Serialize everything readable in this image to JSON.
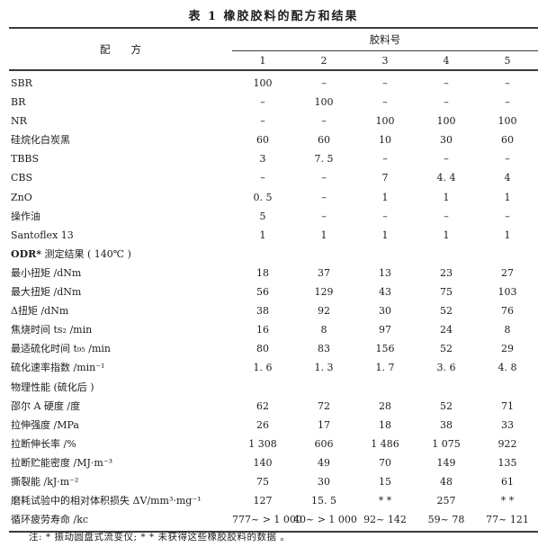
{
  "title": "表 1  橡胶胶料的配方和结果",
  "table": {
    "left_header": "配　　方",
    "group_header": "胶料号",
    "column_headers": [
      "1",
      "2",
      "3",
      "4",
      "5"
    ],
    "rows": [
      {
        "label": "SBR",
        "values": [
          "100",
          "–",
          "–",
          "–",
          "–"
        ]
      },
      {
        "label": "BR",
        "values": [
          "–",
          "100",
          "–",
          "–",
          "–"
        ]
      },
      {
        "label": "NR",
        "values": [
          "–",
          "–",
          "100",
          "100",
          "100"
        ]
      },
      {
        "label": "硅烷化白炭黑",
        "values": [
          "60",
          "60",
          "10",
          "30",
          "60"
        ]
      },
      {
        "label": "TBBS",
        "values": [
          "3",
          "7. 5",
          "–",
          "–",
          "–"
        ]
      },
      {
        "label": "CBS",
        "values": [
          "–",
          "–",
          "7",
          "4. 4",
          "4"
        ]
      },
      {
        "label": "ZnO",
        "values": [
          "0. 5",
          "–",
          "1",
          "1",
          "1"
        ]
      },
      {
        "label": "操作油",
        "values": [
          "5",
          "–",
          "–",
          "–",
          "–"
        ]
      },
      {
        "label": "Santoflex 13",
        "values": [
          "1",
          "1",
          "1",
          "1",
          "1"
        ]
      },
      {
        "label": "ODR* 测定结果 ( 140℃ )",
        "bold_first_word": true,
        "section": true,
        "values": [
          "",
          "",
          "",
          "",
          ""
        ]
      },
      {
        "label": "最小扭矩 /dNm",
        "values": [
          "18",
          "37",
          "13",
          "23",
          "27"
        ]
      },
      {
        "label": "最大扭矩 /dNm",
        "values": [
          "56",
          "129",
          "43",
          "75",
          "103"
        ]
      },
      {
        "label": "Δ扭矩 /dNm",
        "values": [
          "38",
          "92",
          "30",
          "52",
          "76"
        ]
      },
      {
        "label": "焦烧时间  ts₂ /min",
        "values": [
          "16",
          "8",
          "97",
          "24",
          "8"
        ]
      },
      {
        "label": "最适硫化时间  t₉₅ /min",
        "values": [
          "80",
          "83",
          "156",
          "52",
          "29"
        ]
      },
      {
        "label": "硫化速率指数 /min⁻¹",
        "values": [
          "1. 6",
          "1. 3",
          "1. 7",
          "3. 6",
          "4. 8"
        ]
      },
      {
        "label": "物理性能 (硫化后 )",
        "section": true,
        "values": [
          "",
          "",
          "",
          "",
          ""
        ]
      },
      {
        "label": "邵尔 A 硬度 /度",
        "values": [
          "62",
          "72",
          "28",
          "52",
          "71"
        ]
      },
      {
        "label": "拉伸强度 /MPa",
        "values": [
          "26",
          "17",
          "18",
          "38",
          "33"
        ]
      },
      {
        "label": "拉断伸长率 /%",
        "values": [
          "1 308",
          "606",
          "1 486",
          "1 075",
          "922"
        ]
      },
      {
        "label": "拉断贮能密度 /MJ·m⁻³",
        "values": [
          "140",
          "49",
          "70",
          "149",
          "135"
        ]
      },
      {
        "label": "撕裂能 /kJ·m⁻²",
        "values": [
          "75",
          "30",
          "15",
          "48",
          "61"
        ]
      },
      {
        "label": "磨耗试验中的相对体积损失  ΔV/mm³·mg⁻¹",
        "values": [
          "127",
          "15. 5",
          "* *",
          "257",
          "* *"
        ]
      },
      {
        "label": "循环疲劳寿命 /kc",
        "values": [
          "777~ > 1 000",
          "40~ > 1 000",
          "92~ 142",
          "59~ 78",
          "77~ 121"
        ]
      }
    ]
  },
  "footnote": "注: * 振动圆盘式流变仪; * * 未获得这些橡胶胶料的数据 。"
}
